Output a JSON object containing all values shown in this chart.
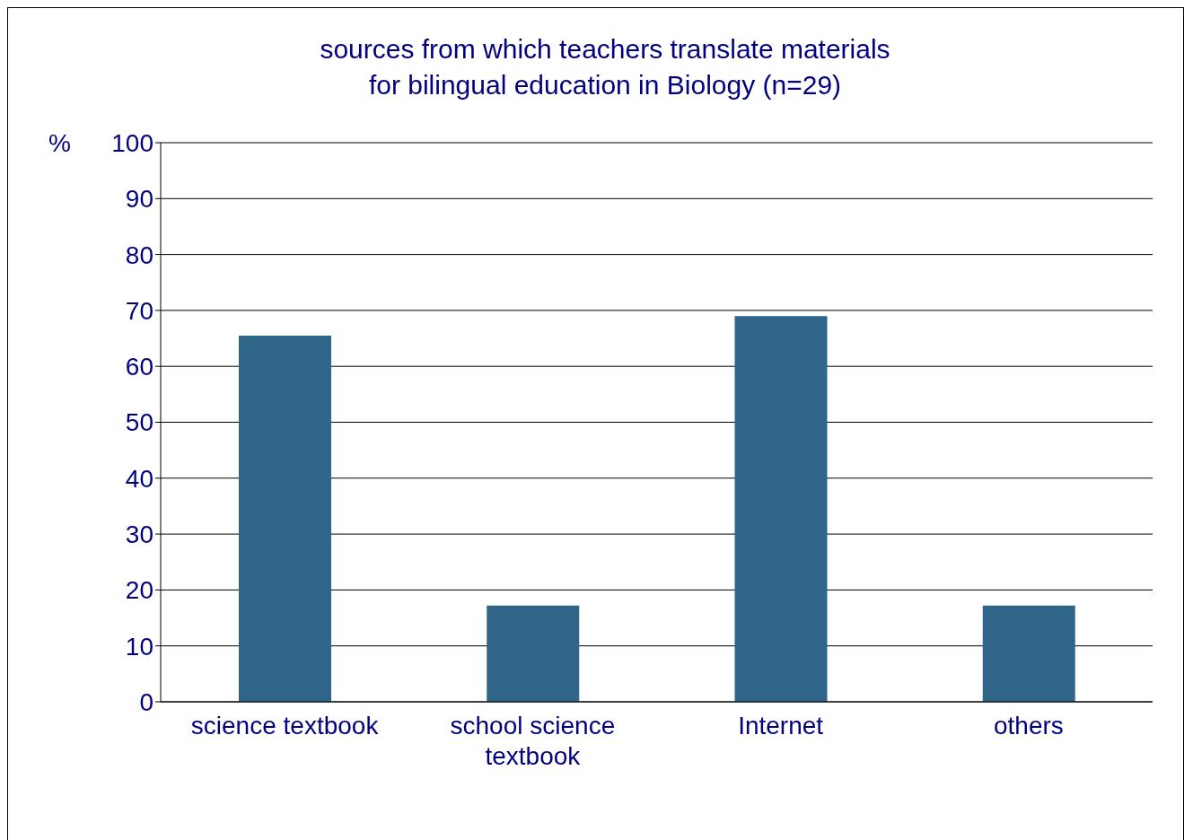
{
  "chart_data": {
    "type": "bar",
    "title": "sources from which teachers translate materials\nfor bilingual education in Biology (n=29)",
    "ylabel": "%",
    "categories": [
      "science textbook",
      "school science textbook",
      "Internet",
      "others"
    ],
    "values": [
      65.5,
      17.2,
      69.0,
      17.2
    ],
    "color": "#2e6589",
    "ylim": [
      0,
      100
    ],
    "yticks": [
      0,
      10,
      20,
      30,
      40,
      50,
      60,
      70,
      80,
      90,
      100
    ],
    "grid": "y"
  }
}
